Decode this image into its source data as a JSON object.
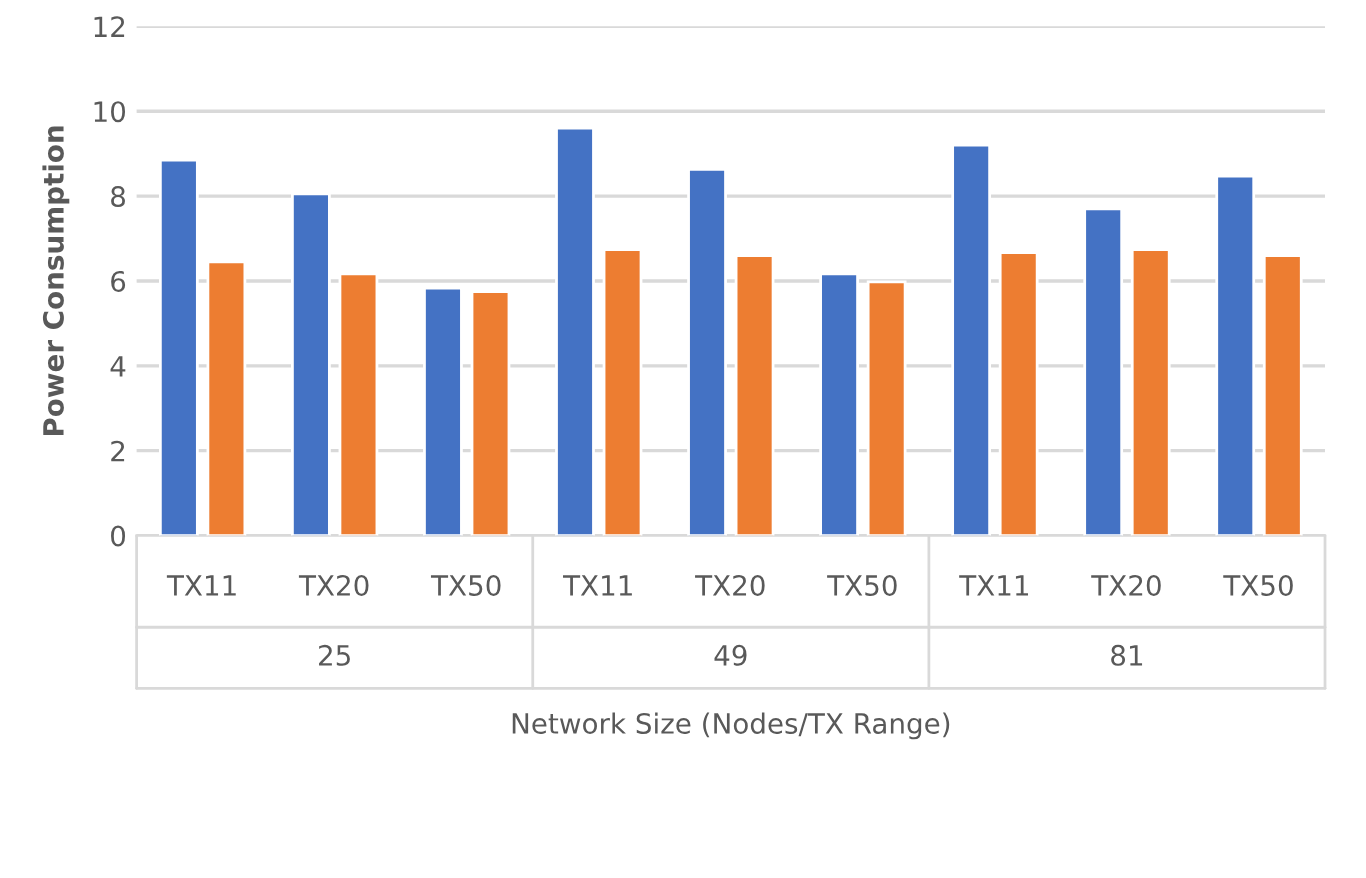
{
  "chart_data": {
    "type": "bar",
    "ylabel": "Power Consumption",
    "xlabel": "Network Size (Nodes/TX Range)",
    "categories": [
      "TX11",
      "TX20",
      "TX50",
      "TX11",
      "TX20",
      "TX50",
      "TX11",
      "TX20",
      "TX50"
    ],
    "annotations": [
      "25",
      "49",
      "81"
    ],
    "series": [
      {
        "color": "#4472c4",
        "values": [
          8.85,
          8.05,
          5.83,
          9.6,
          8.63,
          6.17,
          9.2,
          7.7,
          8.47
        ]
      },
      {
        "color": "#ed7d31",
        "values": [
          6.45,
          6.17,
          5.75,
          6.74,
          6.6,
          5.98,
          6.67,
          6.74,
          6.6
        ]
      }
    ],
    "ylim": [
      0,
      12
    ],
    "yticks": [
      0,
      2,
      4,
      6,
      8,
      10,
      12
    ],
    "grid": "y"
  }
}
